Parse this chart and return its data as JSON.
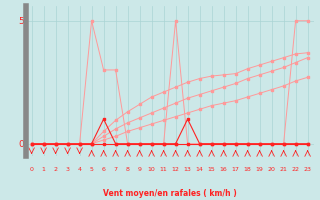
{
  "xlabel": "Vent moyen/en rafales ( km/h )",
  "background_color": "#cce8e8",
  "xlim": [
    -0.5,
    23.5
  ],
  "ylim": [
    -0.5,
    5.6
  ],
  "yticks": [
    0,
    5
  ],
  "xticks": [
    0,
    1,
    2,
    3,
    4,
    5,
    6,
    7,
    8,
    9,
    10,
    11,
    12,
    13,
    14,
    15,
    16,
    17,
    18,
    19,
    20,
    21,
    22,
    23
  ],
  "grid_color": "#aad4d4",
  "line_color_dark": "#ff2222",
  "line_color_light": "#ff9999",
  "zero_line_x": [
    0,
    1,
    2,
    3,
    4,
    5,
    6,
    7,
    8,
    9,
    10,
    11,
    12,
    13,
    14,
    15,
    16,
    17,
    18,
    19,
    20,
    21,
    22,
    23
  ],
  "zero_line_y": [
    0,
    0,
    0,
    0,
    0,
    0,
    0,
    0,
    0,
    0,
    0,
    0,
    0,
    0,
    0,
    0,
    0,
    0,
    0,
    0,
    0,
    0,
    0,
    0
  ],
  "light_spiky_x": [
    0,
    1,
    2,
    3,
    4,
    5,
    6,
    7,
    8,
    9,
    10,
    11,
    12,
    13,
    14,
    15,
    16,
    17,
    18,
    19,
    20,
    21,
    22,
    23
  ],
  "light_spiky_y": [
    0,
    0,
    0,
    0,
    0,
    5,
    3,
    3,
    0,
    0,
    0,
    0,
    5,
    0,
    0,
    0,
    0,
    0,
    0,
    0,
    0,
    0,
    5,
    5
  ],
  "dark_spike_x": [
    0,
    1,
    2,
    3,
    4,
    5,
    6,
    7,
    8,
    9,
    10,
    11,
    12,
    13,
    14,
    15,
    16,
    17,
    18,
    19,
    20,
    21,
    22,
    23
  ],
  "dark_spike_y": [
    0,
    0,
    0,
    0,
    0,
    0,
    1,
    0,
    0,
    0,
    0,
    0,
    0,
    1,
    0,
    0,
    0,
    0,
    0,
    0,
    0,
    0,
    0,
    0
  ],
  "trend1_x": [
    0,
    1,
    2,
    3,
    4,
    5,
    6,
    7,
    8,
    9,
    10,
    11,
    12,
    13,
    14,
    15,
    16,
    17,
    18,
    19,
    20,
    21,
    22,
    23
  ],
  "trend1_y": [
    0,
    0,
    0,
    0,
    0,
    0,
    0.15,
    0.3,
    0.5,
    0.65,
    0.8,
    0.95,
    1.1,
    1.25,
    1.4,
    1.55,
    1.65,
    1.75,
    1.9,
    2.05,
    2.2,
    2.35,
    2.55,
    2.7
  ],
  "trend2_x": [
    0,
    1,
    2,
    3,
    4,
    5,
    6,
    7,
    8,
    9,
    10,
    11,
    12,
    13,
    14,
    15,
    16,
    17,
    18,
    19,
    20,
    21,
    22,
    23
  ],
  "trend2_y": [
    0,
    0,
    0,
    0,
    0,
    0,
    0.3,
    0.6,
    0.85,
    1.05,
    1.25,
    1.45,
    1.65,
    1.85,
    2.0,
    2.15,
    2.3,
    2.45,
    2.65,
    2.8,
    2.95,
    3.1,
    3.3,
    3.5
  ],
  "trend3_x": [
    0,
    1,
    2,
    3,
    4,
    5,
    6,
    7,
    8,
    9,
    10,
    11,
    12,
    13,
    14,
    15,
    16,
    17,
    18,
    19,
    20,
    21,
    22,
    23
  ],
  "trend3_y": [
    0,
    0,
    0,
    0,
    0,
    0,
    0.5,
    0.95,
    1.3,
    1.6,
    1.9,
    2.1,
    2.3,
    2.5,
    2.65,
    2.75,
    2.8,
    2.85,
    3.05,
    3.2,
    3.35,
    3.5,
    3.65,
    3.7
  ],
  "arrows_down": [
    0,
    1,
    2,
    3,
    4
  ],
  "arrows_up": [
    5,
    6,
    7,
    8,
    9,
    10,
    11,
    12,
    13,
    14,
    15,
    16,
    17,
    18,
    19,
    20,
    21,
    22,
    23
  ]
}
